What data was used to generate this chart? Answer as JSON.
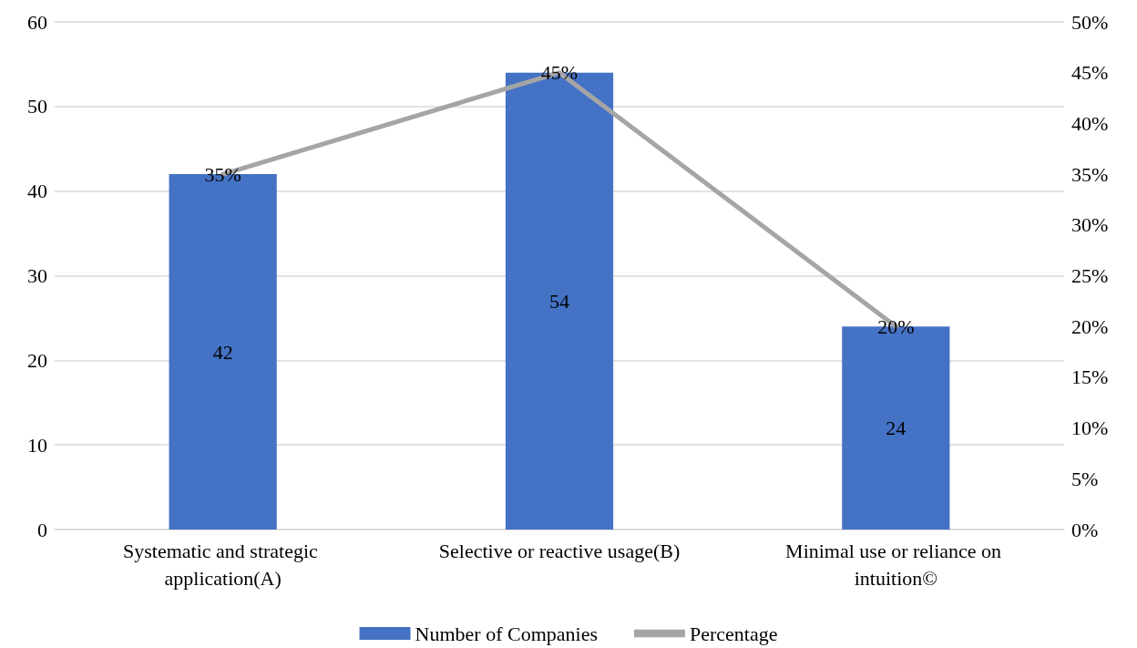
{
  "chart_data": {
    "type": "bar",
    "categories": [
      "Systematic and strategic application(A)",
      "Selective or reactive usage(B)",
      "Minimal use or reliance on intuition©"
    ],
    "series": [
      {
        "name": "Number of Companies",
        "color": "#4472c4",
        "values": [
          42,
          54,
          24
        ],
        "value_labels": [
          "42",
          "54",
          "24"
        ]
      },
      {
        "name": "Percentage",
        "type": "line",
        "axis": "y2",
        "color": "#a5a5a5",
        "marker": "none",
        "values": [
          35,
          45,
          20
        ],
        "value_labels": [
          "35%",
          "45%",
          "20%"
        ]
      }
    ],
    "ylim": [
      0,
      60
    ],
    "yticks": [
      0,
      10,
      20,
      30,
      40,
      50,
      60
    ],
    "y2lim": [
      0,
      50
    ],
    "y2ticks": [
      {
        "value": 0,
        "label": "0%"
      },
      {
        "value": 5,
        "label": "5%"
      },
      {
        "value": 10,
        "label": "10%"
      },
      {
        "value": 15,
        "label": "15%"
      },
      {
        "value": 20,
        "label": "20%"
      },
      {
        "value": 25,
        "label": "25%"
      },
      {
        "value": 30,
        "label": "30%"
      },
      {
        "value": 35,
        "label": "35%"
      },
      {
        "value": 40,
        "label": "40%"
      },
      {
        "value": 45,
        "label": "45%"
      },
      {
        "value": 50,
        "label": "50%"
      }
    ],
    "grid": "y",
    "legend": "bottom"
  }
}
